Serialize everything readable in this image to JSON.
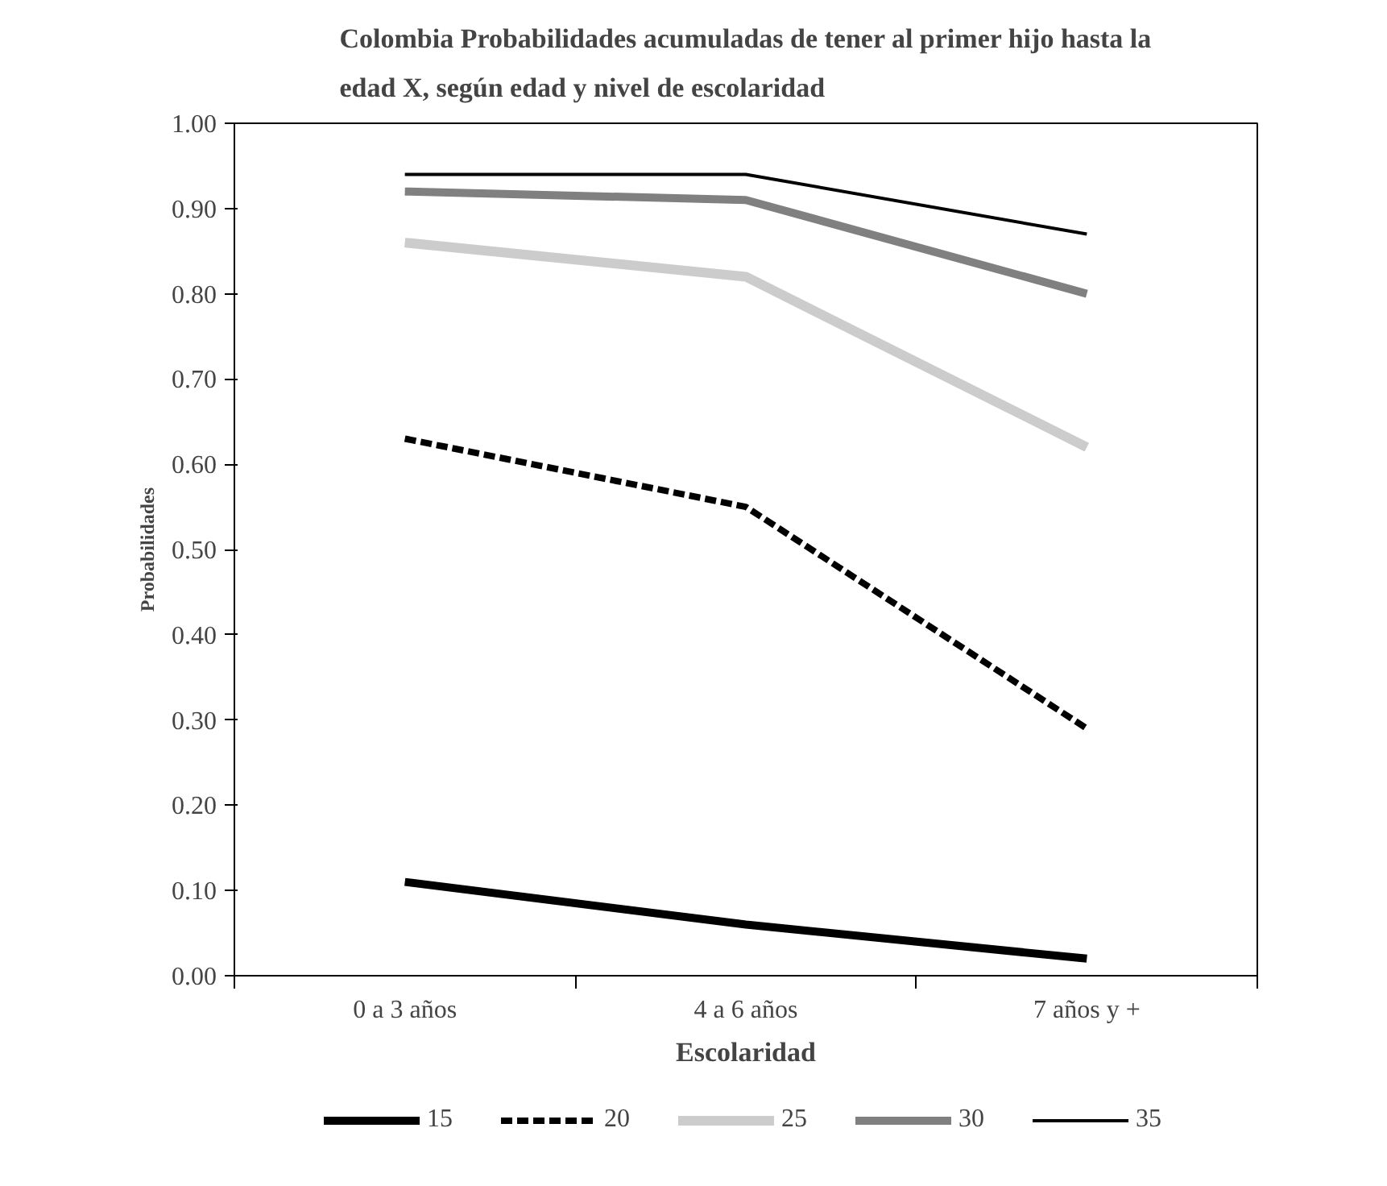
{
  "chart_data": {
    "type": "line",
    "title": "Colombia Probabilidades acumuladas de tener al primer hijo hasta la\nedad X, según edad y nivel de escolaridad",
    "xlabel": "Escolaridad",
    "ylabel": "Probabilidades",
    "categories": [
      "0 a 3 años",
      "4 a 6 años",
      "7 años y +"
    ],
    "ylim": [
      0,
      1
    ],
    "yticks": [
      {
        "value": 0,
        "label": "0.00"
      },
      {
        "value": 0.1,
        "label": "0.10"
      },
      {
        "value": 0.2,
        "label": "0.20"
      },
      {
        "value": 0.3,
        "label": "0.30"
      },
      {
        "value": 0.4,
        "label": "0.40"
      },
      {
        "value": 0.5,
        "label": "0.50"
      },
      {
        "value": 0.6,
        "label": "0.60"
      },
      {
        "value": 0.7,
        "label": "0.70"
      },
      {
        "value": 0.8,
        "label": "0.80"
      },
      {
        "value": 0.9,
        "label": "0.90"
      },
      {
        "value": 1,
        "label": "1.00"
      }
    ],
    "grid": false,
    "legend": "bottom",
    "marker": "none",
    "series": [
      {
        "name": "15",
        "color": "#000000",
        "values": [
          0.11,
          0.06,
          0.02
        ]
      },
      {
        "name": "20",
        "color": "#000000",
        "line_style": "dashed",
        "values": [
          0.63,
          0.55,
          0.29
        ]
      },
      {
        "name": "25",
        "color": "#cccccc",
        "values": [
          0.86,
          0.82,
          0.62
        ]
      },
      {
        "name": "30",
        "color": "#808080",
        "values": [
          0.92,
          0.91,
          0.8
        ]
      },
      {
        "name": "35",
        "color": "#000000",
        "values": [
          0.94,
          0.94,
          0.87
        ]
      }
    ]
  }
}
